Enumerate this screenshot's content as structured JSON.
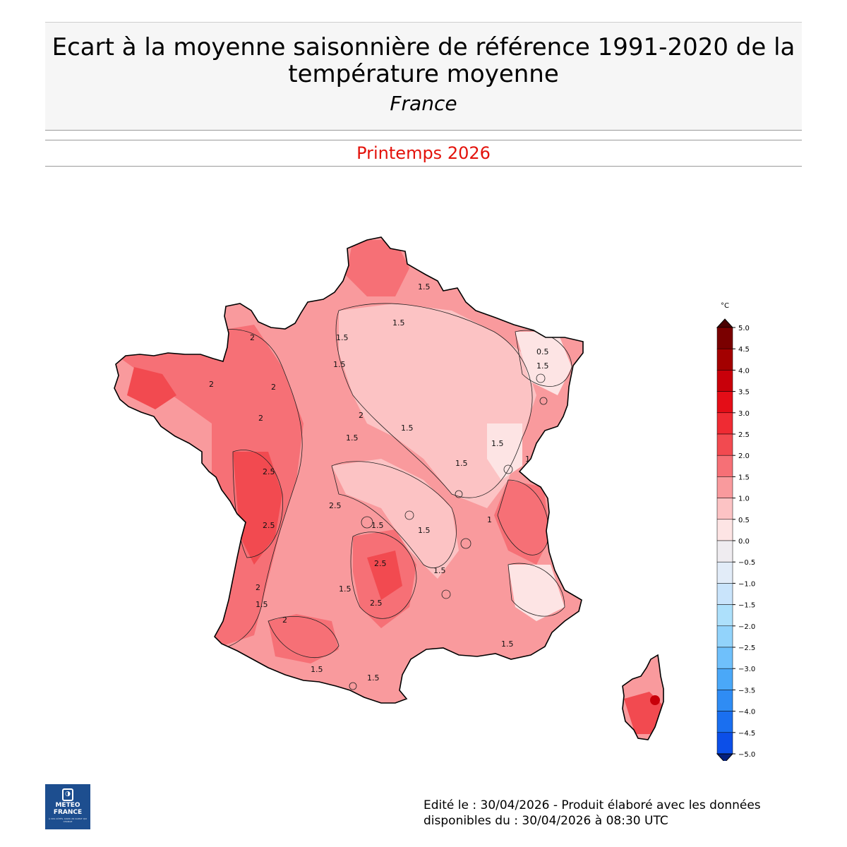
{
  "header": {
    "title": "Ecart à la moyenne saisonnière de référence 1991-2020 de la température moyenne",
    "region": "France"
  },
  "period": "Printemps 2026",
  "legend": {
    "unit": "°C",
    "ticks": [
      "5.0",
      "4.5",
      "4.0",
      "3.5",
      "3.0",
      "2.5",
      "2.0",
      "1.5",
      "1.0",
      "0.5",
      "0.0",
      "−0.5",
      "−1.0",
      "−1.5",
      "−2.0",
      "−2.5",
      "−3.0",
      "−3.5",
      "−4.0",
      "−4.5",
      "−5.0"
    ],
    "colors": [
      "#7a0000",
      "#a30000",
      "#c8000a",
      "#e40d17",
      "#ef2b33",
      "#f24a50",
      "#f67076",
      "#f99a9d",
      "#fcc3c4",
      "#fde4e4",
      "#efecf0",
      "#e2ecf8",
      "#c9e4fb",
      "#ade0fb",
      "#92d3fb",
      "#6fc0fb",
      "#4aa8f8",
      "#2f8cf4",
      "#1a6ff0",
      "#0c4fe8",
      "#0433d6"
    ],
    "over_color": "#4a0000",
    "under_color": "#04207e"
  },
  "contour_labels": {
    "mainland": [
      "1.5",
      "1.5",
      "1.5",
      "1.5",
      "1.5",
      "1.5",
      "1.5",
      "1.5",
      "1.5",
      "1.5",
      "1.5",
      "1.5",
      "1.5",
      "1.5",
      "1.5",
      "2",
      "2",
      "2",
      "2",
      "2",
      "2",
      "2",
      "2.5",
      "2.5",
      "2.5",
      "2.5",
      "2.5",
      "1",
      "1",
      "0.5",
      "1.5",
      "1.5"
    ]
  },
  "logo": {
    "brand_line1": "METEO",
    "brand_line2": "FRANCE",
    "slogan": "À VOS CÔTÉS, DANS UN CLIMAT QUI CHANGE"
  },
  "footer": {
    "line1": "Edité le : 30/04/2026 - Produit élaboré avec les données",
    "line2": "disponibles du : 30/04/2026 à 08:30 UTC"
  }
}
